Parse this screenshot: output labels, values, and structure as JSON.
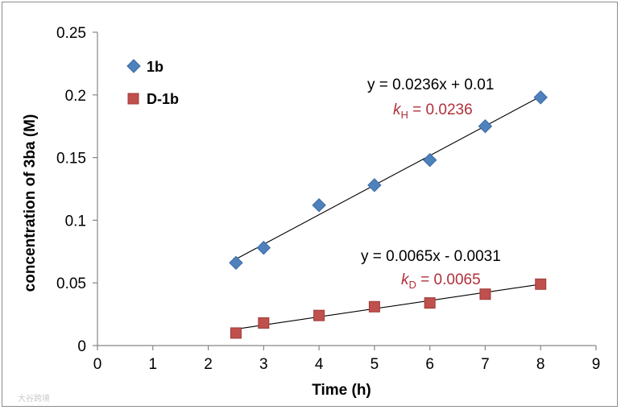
{
  "chart_data": {
    "type": "scatter",
    "xlabel": "Time  (h)",
    "ylabel": "concentration of 3ba (M)",
    "xlim": [
      0,
      9
    ],
    "ylim": [
      0,
      0.25
    ],
    "x_ticks": [
      "0",
      "1",
      "2",
      "3",
      "4",
      "5",
      "6",
      "7",
      "8",
      "9"
    ],
    "y_ticks": [
      "0",
      "0.05",
      "0.1",
      "0.15",
      "0.2",
      "0.25"
    ],
    "grid": false,
    "legend_position": "top-left",
    "series": [
      {
        "name": "1b",
        "marker": "diamond",
        "color": "#4f81bd",
        "x": [
          2.5,
          3,
          4,
          5,
          6,
          7,
          8
        ],
        "y": [
          0.066,
          0.078,
          0.112,
          0.128,
          0.148,
          0.175,
          0.198
        ],
        "trendline": {
          "slope": 0.0236,
          "intercept": 0.01,
          "x_range": [
            2.5,
            8
          ],
          "equation": "y = 0.0236x + 0.01",
          "k_symbol": "k",
          "k_subscript": "H",
          "k_value": " = 0.0236"
        }
      },
      {
        "name": "D-1b",
        "marker": "square",
        "color": "#c0504d",
        "x": [
          2.5,
          3,
          4,
          5,
          6,
          7,
          8
        ],
        "y": [
          0.01,
          0.018,
          0.024,
          0.031,
          0.034,
          0.041,
          0.049
        ],
        "trendline": {
          "slope": 0.0065,
          "intercept": -0.0031,
          "x_range": [
            2.5,
            8
          ],
          "equation": "y = 0.0065x - 0.0031",
          "k_symbol": "k",
          "k_subscript": "D",
          "k_value": " = 0.0065"
        }
      }
    ]
  },
  "watermark": "大谷跨境"
}
